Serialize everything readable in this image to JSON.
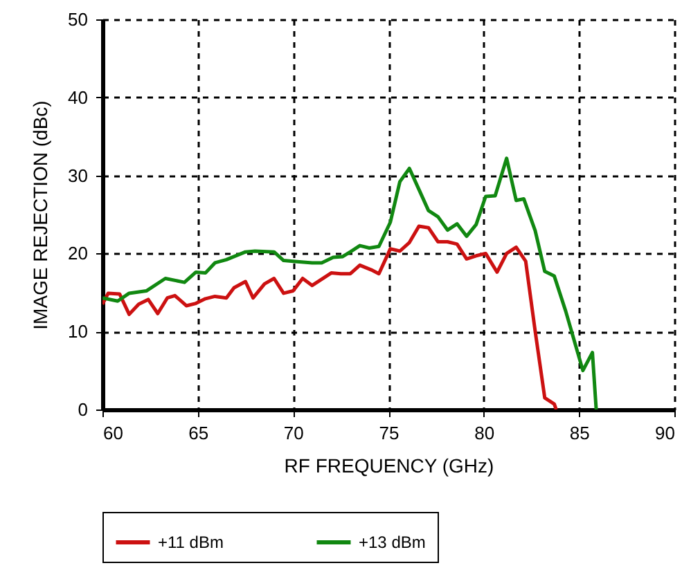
{
  "chart_data": {
    "type": "line",
    "xlabel": "RF FREQUENCY (GHz)",
    "ylabel": "IMAGE REJECTION (dBc)",
    "xlim": [
      60,
      90
    ],
    "xticks": [
      60,
      65,
      70,
      75,
      80,
      85,
      90
    ],
    "ylim": [
      0,
      50
    ],
    "yticks": [
      0,
      10,
      20,
      30,
      40,
      50
    ],
    "grid": true,
    "legend": "bottom",
    "line_style": "solid",
    "marker": "none",
    "series": [
      {
        "name": "+11 dBm",
        "color": "#cc1111",
        "x": [
          60,
          60.3,
          60.9,
          61.4,
          61.9,
          62.4,
          62.9,
          63.4,
          63.8,
          64.4,
          64.9,
          65.4,
          65.9,
          66.5,
          66.9,
          67.5,
          67.9,
          68.5,
          69.0,
          69.5,
          70.0,
          70.5,
          71.0,
          71.5,
          72.0,
          72.5,
          73.0,
          73.5,
          74.1,
          74.5,
          75.1,
          75.6,
          76.1,
          76.6,
          77.1,
          77.6,
          78.1,
          78.6,
          79.1,
          79.6,
          80.1,
          80.7,
          81.2,
          81.7,
          82.2,
          82.7,
          83.2,
          83.7,
          83.8
        ],
        "values": [
          13.5,
          14.9,
          14.8,
          12.2,
          13.5,
          14.1,
          12.3,
          14.3,
          14.6,
          13.3,
          13.6,
          14.2,
          14.5,
          14.3,
          15.6,
          16.4,
          14.3,
          16.1,
          16.8,
          14.9,
          15.2,
          16.8,
          15.9,
          16.7,
          17.5,
          17.4,
          17.4,
          18.5,
          17.9,
          17.4,
          20.6,
          20.3,
          21.4,
          23.5,
          23.3,
          21.5,
          21.5,
          21.2,
          19.3,
          19.7,
          20.0,
          17.6,
          20.0,
          20.8,
          19.0,
          10.0,
          1.5,
          0.7,
          0
        ]
      },
      {
        "name": "+13 dBm",
        "color": "#118811",
        "x": [
          60,
          60.8,
          61.4,
          62.3,
          63.3,
          64.3,
          64.9,
          65.4,
          65.9,
          66.5,
          67.5,
          68.0,
          69.0,
          69.5,
          70.0,
          71.0,
          71.5,
          72.1,
          72.6,
          73.0,
          73.5,
          74.0,
          74.5,
          75.1,
          75.6,
          76.1,
          76.6,
          77.1,
          77.6,
          78.1,
          78.6,
          79.1,
          79.6,
          80.1,
          80.6,
          81.2,
          81.7,
          82.1,
          82.7,
          83.2,
          83.7,
          84.3,
          85.2,
          85.7,
          85.9
        ],
        "values": [
          14.3,
          13.9,
          14.9,
          15.2,
          16.8,
          16.3,
          17.6,
          17.5,
          18.8,
          19.2,
          20.2,
          20.3,
          20.2,
          19.1,
          19.0,
          18.8,
          18.8,
          19.5,
          19.6,
          20.2,
          21.0,
          20.7,
          20.9,
          24.0,
          29.2,
          30.9,
          28.2,
          25.5,
          24.7,
          23.0,
          23.8,
          22.2,
          23.7,
          27.3,
          27.4,
          32.2,
          26.8,
          27.0,
          22.9,
          17.7,
          17.1,
          12.6,
          5.0,
          7.3,
          0
        ]
      }
    ]
  }
}
